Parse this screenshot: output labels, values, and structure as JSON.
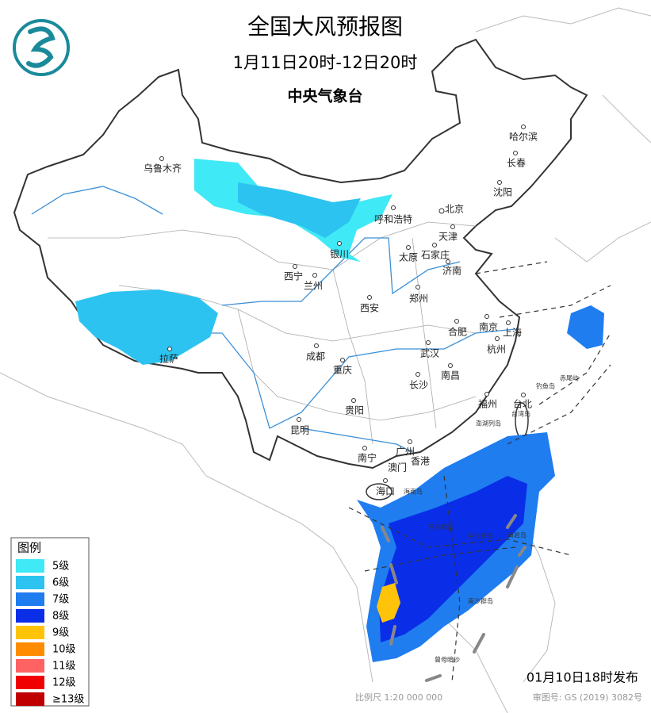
{
  "header": {
    "title": "全国大风预报图",
    "period": "1月11日20时-12日20时",
    "issuer": "中央气象台"
  },
  "cities": [
    "乌鲁木齐",
    "哈尔滨",
    "长春",
    "沈阳",
    "呼和浩特",
    "北京",
    "天津",
    "银川",
    "太原",
    "石家庄",
    "济南",
    "西宁",
    "兰州",
    "西安",
    "郑州",
    "合肥",
    "南京",
    "上海",
    "杭州",
    "成都",
    "武汉",
    "重庆",
    "拉萨",
    "南昌",
    "长沙",
    "福州",
    "台北",
    "贵阳",
    "昆明",
    "南宁",
    "广州",
    "澳门",
    "香港",
    "海口"
  ],
  "places": [
    "赤尾屿",
    "钓鱼岛",
    "台湾岛",
    "澎湖列岛",
    "海南岛",
    "西沙群岛",
    "中沙群岛",
    "黄岩岛",
    "南沙群岛",
    "曾母暗沙"
  ],
  "legend": {
    "title": "图例",
    "items": [
      {
        "label": "5级",
        "color": "#3fe9f6"
      },
      {
        "label": "6级",
        "color": "#2cc3f0"
      },
      {
        "label": "7级",
        "color": "#1f7df0"
      },
      {
        "label": "8级",
        "color": "#0a2ee8"
      },
      {
        "label": "9级",
        "color": "#ffc40a"
      },
      {
        "label": "10级",
        "color": "#ff8c00"
      },
      {
        "label": "11级",
        "color": "#ff6262"
      },
      {
        "label": "12级",
        "color": "#f00000"
      },
      {
        "label": "≥13级",
        "color": "#c00000"
      }
    ]
  },
  "footer": {
    "issued": "01月10日18时发布",
    "scale": "比例尺 1:20 000 000",
    "approval": "审图号: GS (2019) 3082号"
  }
}
